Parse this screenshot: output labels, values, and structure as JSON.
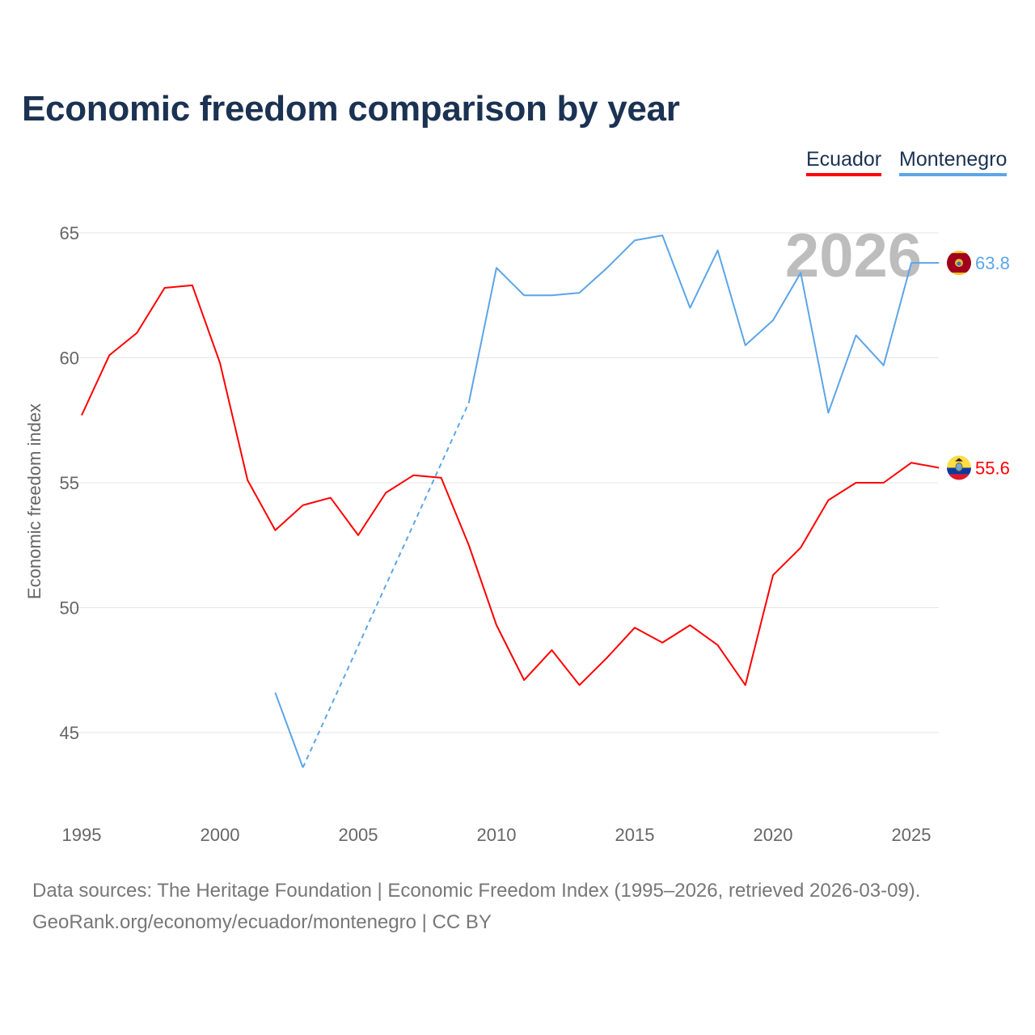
{
  "title": "Economic freedom comparison by year",
  "sources": {
    "line1": "Data sources: The Heritage Foundation | Economic Freedom Index (1995–2026, retrieved 2026-03-09).",
    "line2": "GeoRank.org/economy/ecuador/montenegro | CC BY"
  },
  "chart_data": {
    "type": "line",
    "title": "Economic freedom comparison by year",
    "xlabel": "",
    "ylabel": "Economic freedom index",
    "year_label": "2026",
    "xlim": [
      1995,
      2026
    ],
    "ylim": [
      42,
      67
    ],
    "x_ticks": [
      1995,
      2000,
      2005,
      2010,
      2015,
      2020,
      2025
    ],
    "y_ticks": [
      45,
      50,
      55,
      60,
      65
    ],
    "grid": true,
    "legend_position": "top-right",
    "x": [
      1995,
      1996,
      1997,
      1998,
      1999,
      2000,
      2001,
      2002,
      2003,
      2004,
      2005,
      2006,
      2007,
      2008,
      2009,
      2010,
      2011,
      2012,
      2013,
      2014,
      2015,
      2016,
      2017,
      2018,
      2019,
      2020,
      2021,
      2022,
      2023,
      2024,
      2025,
      2026
    ],
    "series": [
      {
        "name": "Ecuador",
        "color": "#ff0000",
        "end_label": "55.6",
        "flag": "ecuador-flag",
        "values": [
          57.7,
          60.1,
          61.0,
          62.8,
          62.9,
          59.8,
          55.1,
          53.1,
          54.1,
          54.4,
          52.9,
          54.6,
          55.3,
          55.2,
          52.5,
          49.3,
          47.1,
          48.3,
          46.9,
          48.0,
          49.2,
          48.6,
          49.3,
          48.5,
          46.9,
          51.3,
          52.4,
          54.3,
          55.0,
          55.0,
          55.8,
          55.6
        ]
      },
      {
        "name": "Montenegro",
        "color": "#5ca5e8",
        "end_label": "63.8",
        "flag": "montenegro-flag",
        "values": [
          null,
          null,
          null,
          null,
          null,
          null,
          null,
          46.6,
          43.6,
          null,
          null,
          null,
          null,
          null,
          58.2,
          63.6,
          62.5,
          62.5,
          62.6,
          63.6,
          64.7,
          64.9,
          62.0,
          64.3,
          60.5,
          61.5,
          63.4,
          57.8,
          60.9,
          59.7,
          63.8,
          63.8
        ]
      }
    ]
  }
}
